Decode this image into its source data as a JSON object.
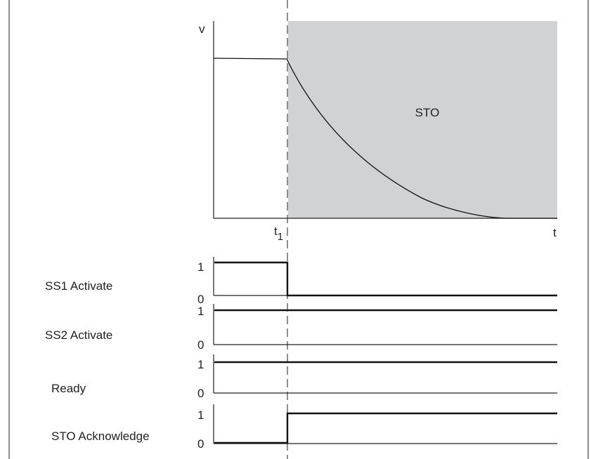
{
  "diagram": {
    "velocity_plot": {
      "y_axis_label": "v",
      "x_axis_label": "t",
      "time_marker": "t",
      "time_marker_subscript": "1",
      "shaded_region_label": "STO",
      "shaded_color": "#d1d2d4"
    },
    "signals": [
      {
        "name": "SS1 Activate",
        "high_label": "1",
        "low_label": "0",
        "levels": [
          1,
          0
        ]
      },
      {
        "name": "SS2 Activate",
        "high_label": "1",
        "low_label": "0",
        "levels": [
          1,
          1
        ]
      },
      {
        "name": "Ready",
        "high_label": "1",
        "low_label": "0",
        "levels": [
          1,
          1
        ]
      },
      {
        "name": "STO Acknowledge",
        "high_label": "1",
        "low_label": "0",
        "levels": [
          0,
          1
        ]
      }
    ]
  }
}
